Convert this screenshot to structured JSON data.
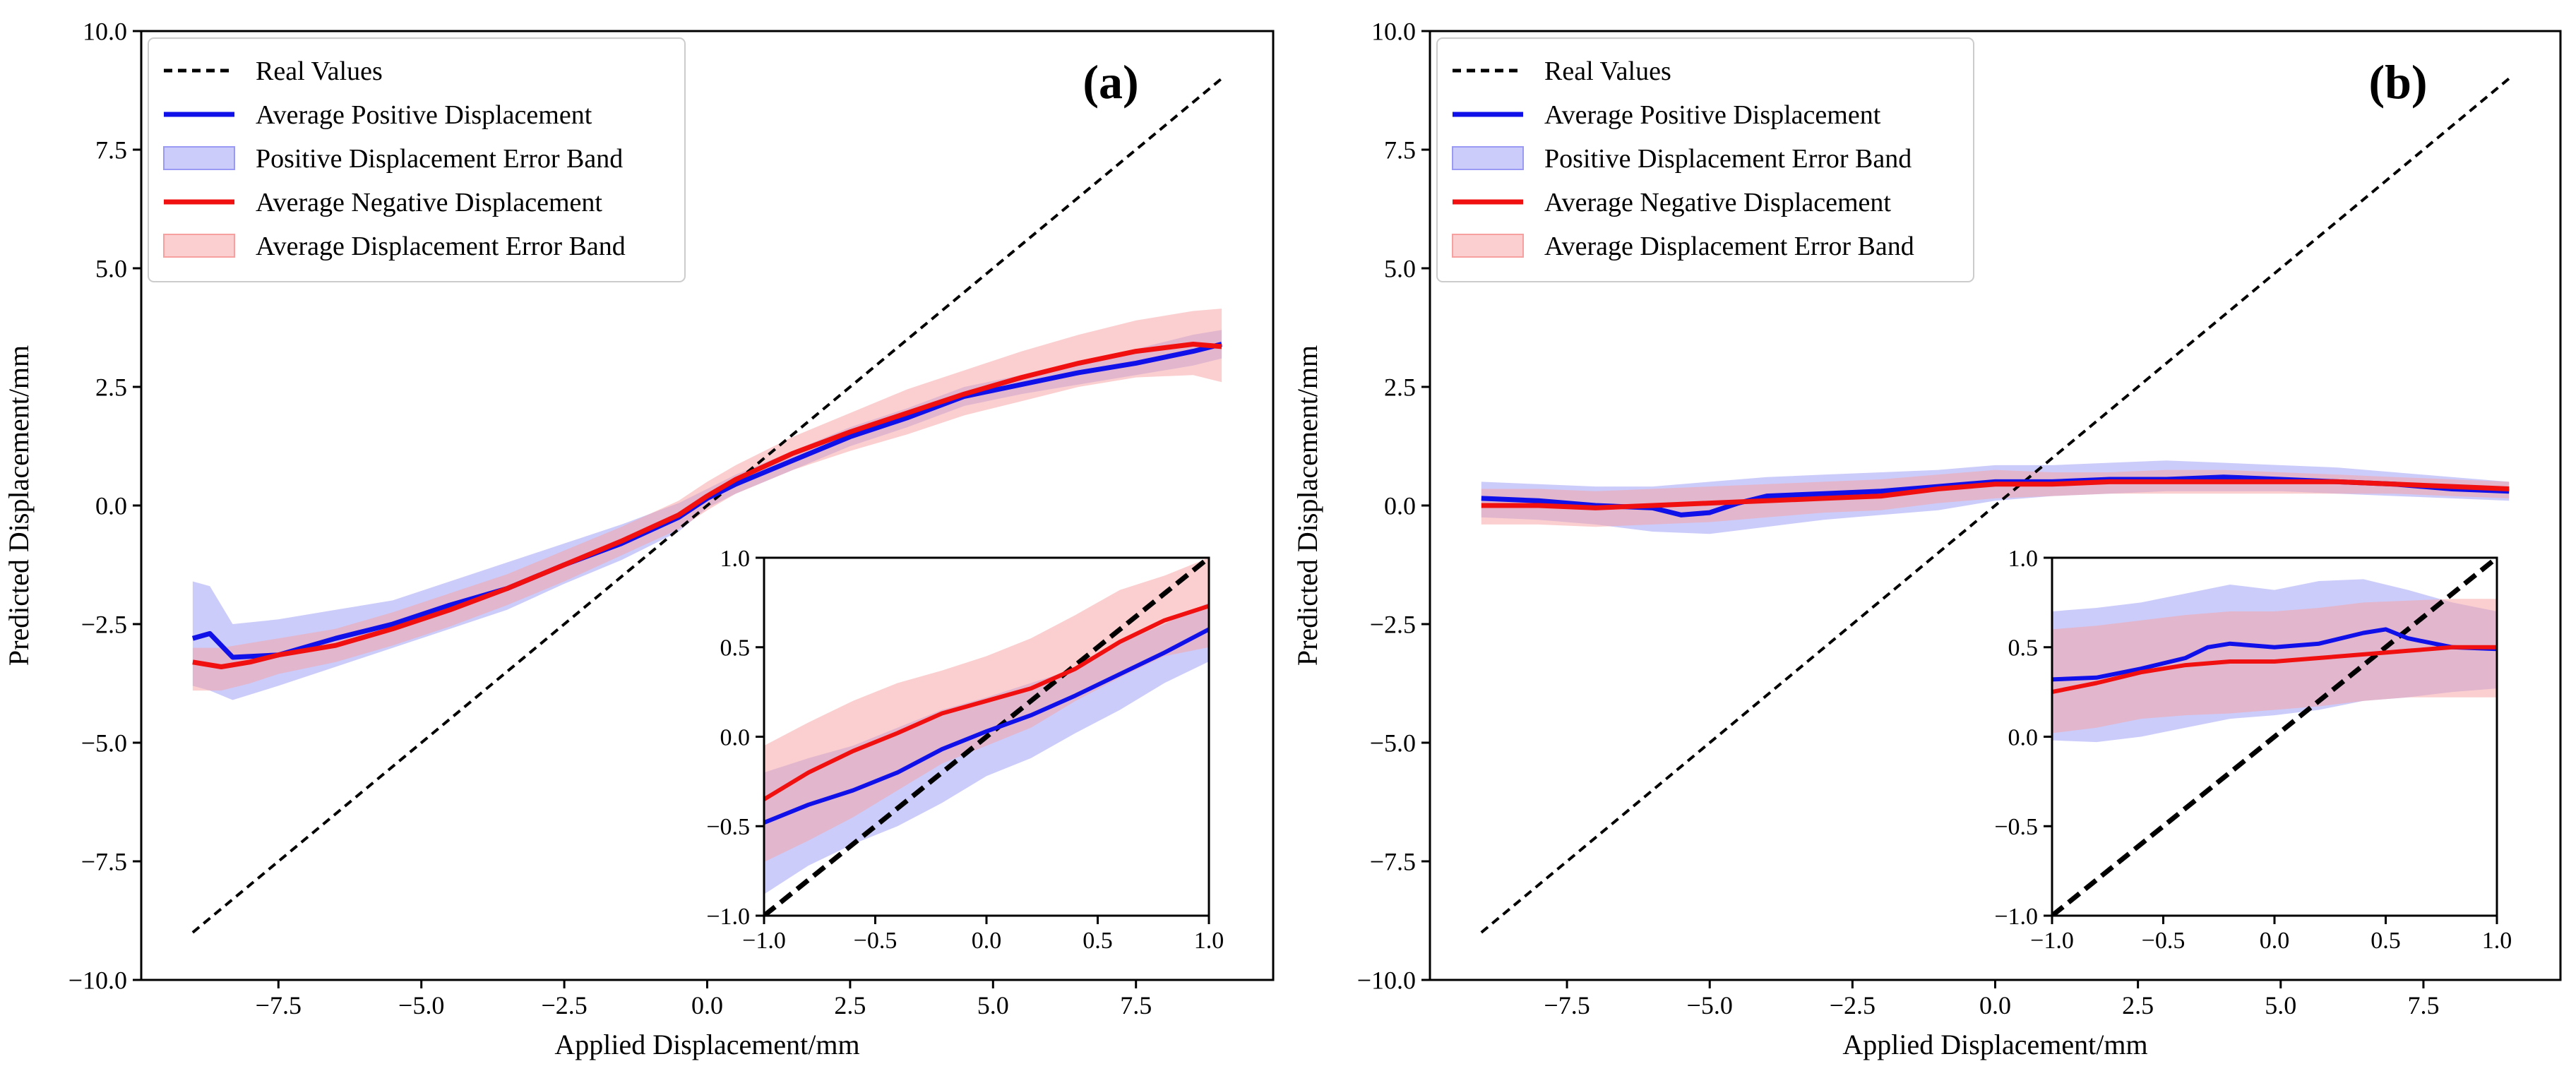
{
  "colors": {
    "real": "#000000",
    "positive": "#1010e8",
    "negative": "#f01010",
    "positive_band": "#9a9af5",
    "negative_band": "#f7a0a0"
  },
  "legend": [
    {
      "key": "real",
      "label": "Real Values",
      "style": "dashed"
    },
    {
      "key": "positive",
      "label": "Average Positive Displacement",
      "style": "line"
    },
    {
      "key": "positive_band",
      "label": "Positive Displacement Error Band",
      "style": "patch"
    },
    {
      "key": "negative",
      "label": "Average Negative Displacement",
      "style": "line"
    },
    {
      "key": "negative_band",
      "label": "Average Displacement Error Band",
      "style": "patch"
    }
  ],
  "chart_data": [
    {
      "id": "a",
      "panel_label": "(a)",
      "type": "line",
      "xlabel": "Applied Displacement/mm",
      "ylabel": "Predicted Displacement/mm",
      "xlim": [
        -9.9,
        9.9
      ],
      "ylim": [
        -10,
        10
      ],
      "xticks": [
        -7.5,
        -5.0,
        -2.5,
        0.0,
        2.5,
        5.0,
        7.5
      ],
      "xtick_labels": [
        "−7.5",
        "−5.0",
        "−2.5",
        "0.0",
        "2.5",
        "5.0",
        "7.5"
      ],
      "yticks": [
        -10,
        -7.5,
        -5,
        -2.5,
        0,
        2.5,
        5,
        7.5,
        10
      ],
      "ytick_labels": [
        "−10.0",
        "−7.5",
        "−5.0",
        "−2.5",
        "0.0",
        "2.5",
        "5.0",
        "7.5",
        "10.0"
      ],
      "series": [
        {
          "name": "Real Values",
          "x": [
            -9,
            9
          ],
          "y": [
            -9,
            9
          ]
        },
        {
          "name": "Average Positive Displacement",
          "x": [
            -9,
            -8.7,
            -8.3,
            -7.5,
            -6.5,
            -5.5,
            -4.5,
            -3.5,
            -2.5,
            -1.5,
            -0.5,
            0,
            0.5,
            1.5,
            2.5,
            3.5,
            4.5,
            5.5,
            6.5,
            7.5,
            8.5,
            9
          ],
          "y": [
            -2.8,
            -2.7,
            -3.2,
            -3.15,
            -2.8,
            -2.5,
            -2.1,
            -1.75,
            -1.25,
            -0.8,
            -0.25,
            0.15,
            0.45,
            0.95,
            1.45,
            1.85,
            2.3,
            2.55,
            2.8,
            3.0,
            3.25,
            3.4
          ]
        },
        {
          "name": "Average Negative Displacement",
          "x": [
            -9,
            -8.5,
            -8,
            -7.5,
            -6.5,
            -5.5,
            -4.5,
            -3.5,
            -2.5,
            -1.5,
            -0.5,
            0,
            0.5,
            1.5,
            2.5,
            3.5,
            4.5,
            5.5,
            6.5,
            7.5,
            8.5,
            9
          ],
          "y": [
            -3.3,
            -3.4,
            -3.3,
            -3.15,
            -2.95,
            -2.6,
            -2.2,
            -1.75,
            -1.25,
            -0.75,
            -0.2,
            0.2,
            0.55,
            1.1,
            1.55,
            1.95,
            2.35,
            2.7,
            3.0,
            3.25,
            3.4,
            3.35
          ]
        },
        {
          "name": "Positive Displacement Error Band",
          "x": [
            -9,
            -8.7,
            -8.3,
            -7.5,
            -6.5,
            -5.5,
            -4.5,
            -3.5,
            -2.5,
            -1.5,
            -0.5,
            0,
            0.5,
            1.5,
            2.5,
            3.5,
            4.5,
            5.5,
            6.5,
            7.5,
            8.5,
            9
          ],
          "upper": [
            -1.6,
            -1.7,
            -2.5,
            -2.4,
            -2.2,
            -2.0,
            -1.6,
            -1.2,
            -0.8,
            -0.4,
            0.05,
            0.35,
            0.65,
            1.15,
            1.65,
            2.05,
            2.5,
            2.75,
            3.05,
            3.3,
            3.6,
            3.7
          ],
          "lower": [
            -3.8,
            -3.9,
            -4.1,
            -3.8,
            -3.4,
            -3.0,
            -2.6,
            -2.2,
            -1.65,
            -1.15,
            -0.55,
            -0.05,
            0.25,
            0.75,
            1.25,
            1.65,
            2.1,
            2.35,
            2.55,
            2.75,
            2.95,
            3.1
          ]
        },
        {
          "name": "Average Displacement Error Band",
          "x": [
            -9,
            -8.5,
            -8,
            -7.5,
            -6.5,
            -5.5,
            -4.5,
            -3.5,
            -2.5,
            -1.5,
            -0.5,
            0,
            0.5,
            1.5,
            2.5,
            3.5,
            4.5,
            5.5,
            6.5,
            7.5,
            8.5,
            9
          ],
          "upper": [
            -3.0,
            -3.0,
            -2.9,
            -2.8,
            -2.6,
            -2.25,
            -1.85,
            -1.45,
            -0.95,
            -0.45,
            0.1,
            0.5,
            0.85,
            1.45,
            1.95,
            2.45,
            2.85,
            3.25,
            3.6,
            3.9,
            4.1,
            4.15
          ],
          "lower": [
            -3.9,
            -3.9,
            -3.75,
            -3.55,
            -3.3,
            -2.95,
            -2.55,
            -2.1,
            -1.6,
            -1.05,
            -0.5,
            -0.1,
            0.25,
            0.75,
            1.15,
            1.5,
            1.9,
            2.2,
            2.5,
            2.7,
            2.75,
            2.6
          ]
        }
      ],
      "inset": {
        "type": "line",
        "xlim": [
          -1,
          1
        ],
        "ylim": [
          -1,
          1
        ],
        "xticks": [
          -1,
          -0.5,
          0,
          0.5,
          1
        ],
        "xtick_labels": [
          "−1.0",
          "−0.5",
          "0.0",
          "0.5",
          "1.0"
        ],
        "yticks": [
          -1,
          -0.5,
          0,
          0.5,
          1
        ],
        "ytick_labels": [
          "−1.0",
          "−0.5",
          "0.0",
          "0.5",
          "1.0"
        ],
        "series": [
          {
            "name": "Real Values",
            "x": [
              -1,
              1
            ],
            "y": [
              -1,
              1
            ]
          },
          {
            "name": "Average Positive Displacement",
            "x": [
              -1,
              -0.8,
              -0.6,
              -0.4,
              -0.2,
              0,
              0.2,
              0.4,
              0.6,
              0.8,
              1
            ],
            "y": [
              -0.48,
              -0.38,
              -0.3,
              -0.2,
              -0.07,
              0.03,
              0.12,
              0.23,
              0.35,
              0.47,
              0.6
            ]
          },
          {
            "name": "Average Negative Displacement",
            "x": [
              -1,
              -0.8,
              -0.6,
              -0.4,
              -0.2,
              0,
              0.2,
              0.4,
              0.6,
              0.8,
              1
            ],
            "y": [
              -0.35,
              -0.2,
              -0.08,
              0.02,
              0.13,
              0.2,
              0.27,
              0.38,
              0.53,
              0.65,
              0.73
            ]
          },
          {
            "name": "Positive Displacement Error Band",
            "x": [
              -1,
              -0.8,
              -0.6,
              -0.4,
              -0.2,
              0,
              0.2,
              0.4,
              0.6,
              0.8,
              1
            ],
            "upper": [
              -0.2,
              -0.12,
              -0.05,
              0.05,
              0.15,
              0.22,
              0.3,
              0.38,
              0.52,
              0.63,
              0.75
            ],
            "lower": [
              -0.88,
              -0.72,
              -0.6,
              -0.5,
              -0.37,
              -0.22,
              -0.12,
              0.02,
              0.15,
              0.3,
              0.42
            ]
          },
          {
            "name": "Average Displacement Error Band",
            "x": [
              -1,
              -0.8,
              -0.6,
              -0.4,
              -0.2,
              0,
              0.2,
              0.4,
              0.6,
              0.8,
              1
            ],
            "upper": [
              -0.05,
              0.08,
              0.2,
              0.3,
              0.37,
              0.45,
              0.55,
              0.68,
              0.82,
              0.9,
              1.0
            ],
            "lower": [
              -0.7,
              -0.58,
              -0.45,
              -0.3,
              -0.15,
              -0.05,
              0.05,
              0.2,
              0.33,
              0.45,
              0.5
            ]
          }
        ]
      }
    },
    {
      "id": "b",
      "panel_label": "(b)",
      "type": "line",
      "xlabel": "Applied Displacement/mm",
      "ylabel": "Predicted Displacement/mm",
      "xlim": [
        -9.9,
        9.9
      ],
      "ylim": [
        -10,
        10
      ],
      "xticks": [
        -7.5,
        -5.0,
        -2.5,
        0.0,
        2.5,
        5.0,
        7.5
      ],
      "xtick_labels": [
        "−7.5",
        "−5.0",
        "−2.5",
        "0.0",
        "2.5",
        "5.0",
        "7.5"
      ],
      "yticks": [
        -10,
        -7.5,
        -5,
        -2.5,
        0,
        2.5,
        5,
        7.5,
        10
      ],
      "ytick_labels": [
        "−10.0",
        "−7.5",
        "−5.0",
        "−2.5",
        "0.0",
        "2.5",
        "5.0",
        "7.5",
        "10.0"
      ],
      "series": [
        {
          "name": "Real Values",
          "x": [
            -9,
            9
          ],
          "y": [
            -9,
            9
          ]
        },
        {
          "name": "Average Positive Displacement",
          "x": [
            -9,
            -8,
            -7,
            -6,
            -5.5,
            -5,
            -4.5,
            -4,
            -3,
            -2,
            -1,
            0,
            1,
            2,
            3,
            4,
            5,
            6,
            7,
            8,
            9
          ],
          "y": [
            0.15,
            0.1,
            0.0,
            -0.05,
            -0.2,
            -0.15,
            0.05,
            0.2,
            0.25,
            0.3,
            0.4,
            0.5,
            0.5,
            0.55,
            0.55,
            0.6,
            0.55,
            0.5,
            0.45,
            0.35,
            0.3
          ]
        },
        {
          "name": "Average Negative Displacement",
          "x": [
            -9,
            -8,
            -7,
            -6,
            -5,
            -4,
            -3,
            -2,
            -1,
            0,
            1,
            2,
            3,
            4,
            5,
            6,
            7,
            8,
            9
          ],
          "y": [
            0.0,
            0.0,
            -0.05,
            0.0,
            0.05,
            0.1,
            0.15,
            0.2,
            0.35,
            0.45,
            0.45,
            0.5,
            0.5,
            0.5,
            0.5,
            0.5,
            0.45,
            0.4,
            0.35
          ]
        },
        {
          "name": "Positive Displacement Error Band",
          "x": [
            -9,
            -8,
            -7,
            -6,
            -5,
            -4,
            -3,
            -2,
            -1,
            0,
            1,
            2,
            3,
            4,
            5,
            6,
            7,
            8,
            9
          ],
          "upper": [
            0.5,
            0.45,
            0.4,
            0.4,
            0.5,
            0.6,
            0.65,
            0.7,
            0.75,
            0.85,
            0.85,
            0.9,
            0.95,
            0.9,
            0.85,
            0.8,
            0.7,
            0.6,
            0.5
          ],
          "lower": [
            -0.25,
            -0.3,
            -0.4,
            -0.55,
            -0.6,
            -0.45,
            -0.3,
            -0.2,
            -0.1,
            0.1,
            0.2,
            0.25,
            0.3,
            0.3,
            0.3,
            0.25,
            0.2,
            0.15,
            0.1
          ]
        },
        {
          "name": "Average Displacement Error Band",
          "x": [
            -9,
            -8,
            -7,
            -6,
            -5,
            -4,
            -3,
            -2,
            -1,
            0,
            1,
            2,
            3,
            4,
            5,
            6,
            7,
            8,
            9
          ],
          "upper": [
            0.35,
            0.35,
            0.3,
            0.35,
            0.4,
            0.45,
            0.5,
            0.55,
            0.65,
            0.75,
            0.7,
            0.7,
            0.75,
            0.75,
            0.7,
            0.65,
            0.6,
            0.55,
            0.5
          ],
          "lower": [
            -0.4,
            -0.4,
            -0.45,
            -0.4,
            -0.35,
            -0.25,
            -0.15,
            -0.1,
            0.05,
            0.15,
            0.2,
            0.25,
            0.25,
            0.25,
            0.25,
            0.25,
            0.25,
            0.2,
            0.15
          ]
        }
      ],
      "inset": {
        "type": "line",
        "xlim": [
          -1,
          1
        ],
        "ylim": [
          -1,
          1
        ],
        "xticks": [
          -1,
          -0.5,
          0,
          0.5,
          1
        ],
        "xtick_labels": [
          "−1.0",
          "−0.5",
          "0.0",
          "0.5",
          "1.0"
        ],
        "yticks": [
          -1,
          -0.5,
          0,
          0.5,
          1
        ],
        "ytick_labels": [
          "−1.0",
          "−0.5",
          "0.0",
          "0.5",
          "1.0"
        ],
        "series": [
          {
            "name": "Real Values",
            "x": [
              -1,
              1
            ],
            "y": [
              -1,
              1
            ]
          },
          {
            "name": "Average Positive Displacement",
            "x": [
              -1,
              -0.8,
              -0.6,
              -0.4,
              -0.3,
              -0.2,
              0,
              0.2,
              0.4,
              0.5,
              0.6,
              0.8,
              1
            ],
            "y": [
              0.32,
              0.33,
              0.38,
              0.44,
              0.5,
              0.52,
              0.5,
              0.52,
              0.58,
              0.6,
              0.55,
              0.5,
              0.49
            ]
          },
          {
            "name": "Average Negative Displacement",
            "x": [
              -1,
              -0.8,
              -0.6,
              -0.4,
              -0.2,
              0,
              0.2,
              0.4,
              0.6,
              0.8,
              1
            ],
            "y": [
              0.25,
              0.3,
              0.36,
              0.4,
              0.42,
              0.42,
              0.44,
              0.46,
              0.48,
              0.5,
              0.5
            ]
          },
          {
            "name": "Positive Displacement Error Band",
            "x": [
              -1,
              -0.8,
              -0.6,
              -0.4,
              -0.2,
              0,
              0.2,
              0.4,
              0.6,
              0.8,
              1
            ],
            "upper": [
              0.7,
              0.72,
              0.75,
              0.8,
              0.85,
              0.82,
              0.87,
              0.88,
              0.82,
              0.75,
              0.7
            ],
            "lower": [
              -0.02,
              -0.03,
              0.0,
              0.05,
              0.1,
              0.12,
              0.15,
              0.2,
              0.22,
              0.25,
              0.27
            ]
          },
          {
            "name": "Average Displacement Error Band",
            "x": [
              -1,
              -0.8,
              -0.6,
              -0.4,
              -0.2,
              0,
              0.2,
              0.4,
              0.6,
              0.8,
              1
            ],
            "upper": [
              0.6,
              0.62,
              0.65,
              0.68,
              0.7,
              0.7,
              0.72,
              0.75,
              0.76,
              0.77,
              0.77
            ],
            "lower": [
              0.02,
              0.05,
              0.1,
              0.12,
              0.13,
              0.15,
              0.17,
              0.2,
              0.22,
              0.22,
              0.22
            ]
          }
        ]
      }
    }
  ]
}
